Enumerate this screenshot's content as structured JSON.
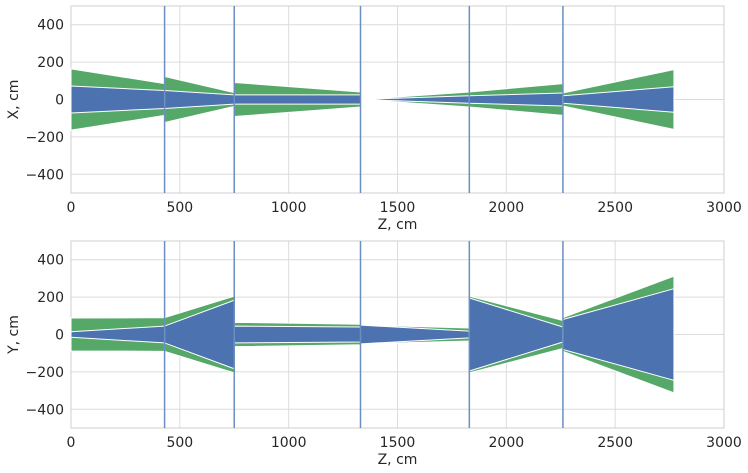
{
  "colors": {
    "inner": "#4c72b0",
    "outer": "#55a868",
    "boundary_line": "#6a8fc0",
    "grid": "#dcdcdc",
    "text": "#262626"
  },
  "chart_data": [
    {
      "type": "area",
      "xlabel": "Z, cm",
      "ylabel": "X, cm",
      "xlim": [
        0,
        3000
      ],
      "ylim": [
        -500,
        500
      ],
      "xticks": [
        0,
        500,
        1000,
        1500,
        2000,
        2500,
        3000
      ],
      "yticks": [
        -400,
        -200,
        0,
        200,
        400
      ],
      "grid": true,
      "boundaries": [
        430,
        750,
        1330,
        1830,
        2260
      ],
      "series": [
        {
          "segments": [
            {
              "x": [
                0,
                430
              ],
              "inner": [
                72,
                48
              ],
              "outer": [
                164,
                85
              ]
            },
            {
              "x": [
                430,
                750
              ],
              "inner": [
                48,
                25
              ],
              "outer": [
                123,
                37
              ]
            },
            {
              "x": [
                750,
                1330
              ],
              "inner": [
                25,
                25
              ],
              "outer": [
                91,
                40
              ]
            },
            {
              "x": [
                1330,
                1830
              ],
              "inner": [
                0,
                20
              ],
              "outer": [
                0,
                40
              ]
            },
            {
              "x": [
                1830,
                2260
              ],
              "inner": [
                20,
                35
              ],
              "outer": [
                40,
                85
              ]
            },
            {
              "x": [
                2260,
                2770
              ],
              "inner": [
                20,
                68
              ],
              "outer": [
                35,
                160
              ]
            }
          ]
        }
      ]
    },
    {
      "type": "area",
      "xlabel": "Z, cm",
      "ylabel": "Y, cm",
      "xlim": [
        0,
        3000
      ],
      "ylim": [
        -500,
        500
      ],
      "xticks": [
        0,
        500,
        1000,
        1500,
        2000,
        2500,
        3000
      ],
      "yticks": [
        -400,
        -200,
        0,
        200,
        400
      ],
      "grid": true,
      "boundaries": [
        430,
        750,
        1330,
        1830,
        2260
      ],
      "series": [
        {
          "segments": [
            {
              "x": [
                0,
                430
              ],
              "inner": [
                15,
                45
              ],
              "outer": [
                88,
                90
              ]
            },
            {
              "x": [
                430,
                750
              ],
              "inner": [
                45,
                183
              ],
              "outer": [
                90,
                205
              ]
            },
            {
              "x": [
                750,
                1330
              ],
              "inner": [
                45,
                40
              ],
              "outer": [
                65,
                55
              ]
            },
            {
              "x": [
                1330,
                1830
              ],
              "inner": [
                50,
                18
              ],
              "outer": [
                50,
                35
              ]
            },
            {
              "x": [
                1830,
                2260
              ],
              "inner": [
                195,
                40
              ],
              "outer": [
                205,
                75
              ]
            },
            {
              "x": [
                2260,
                2770
              ],
              "inner": [
                80,
                245
              ],
              "outer": [
                90,
                312
              ]
            }
          ]
        }
      ]
    }
  ]
}
